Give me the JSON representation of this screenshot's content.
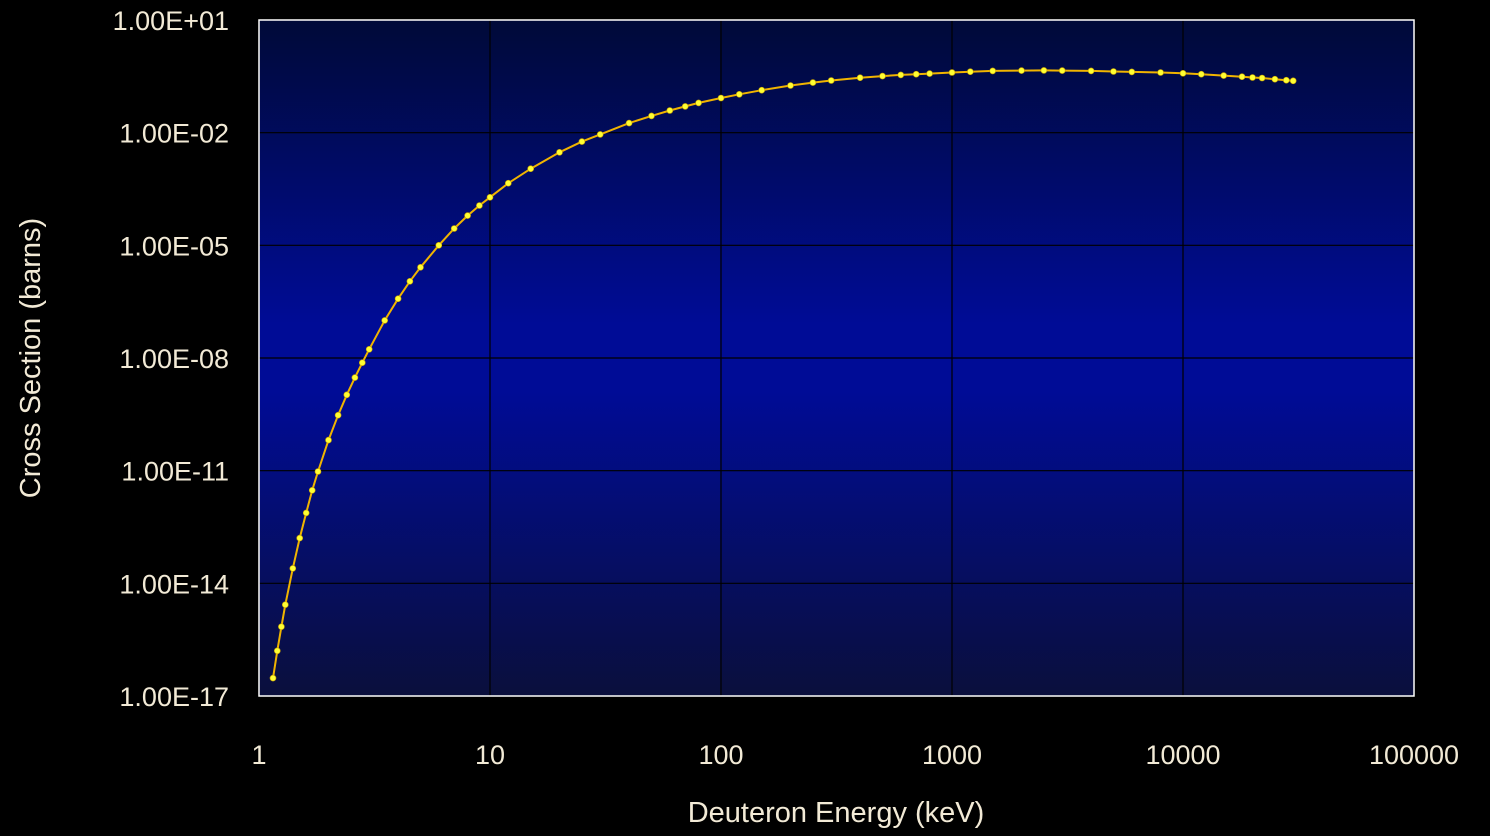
{
  "chart_data": {
    "type": "line",
    "title": "",
    "xlabel": "Deuteron Energy (keV)",
    "ylabel": "Cross Section (barns)",
    "x_scale": "log",
    "y_scale": "log",
    "xlim": [
      1,
      100000
    ],
    "ylim": [
      1e-17,
      10
    ],
    "grid": true,
    "legend": "none",
    "x_ticks": [
      {
        "value": 1,
        "label": "1"
      },
      {
        "value": 10,
        "label": "10"
      },
      {
        "value": 100,
        "label": "100"
      },
      {
        "value": 1000,
        "label": "1000"
      },
      {
        "value": 10000,
        "label": "10000"
      },
      {
        "value": 100000,
        "label": "100000"
      }
    ],
    "y_ticks": [
      {
        "value": 1e-17,
        "label": "1.00E-17"
      },
      {
        "value": 1e-14,
        "label": "1.00E-14"
      },
      {
        "value": 1e-11,
        "label": "1.00E-11"
      },
      {
        "value": 1e-08,
        "label": "1.00E-08"
      },
      {
        "value": 1e-05,
        "label": "1.00E-05"
      },
      {
        "value": 0.01,
        "label": "1.00E-02"
      },
      {
        "value": 10,
        "label": "1.00E+01"
      }
    ],
    "colors": {
      "background": "#000000",
      "plot_top": "#000a38",
      "plot_bottom": "#0a0f3c",
      "plot_mid": "#000c96",
      "grid": "#000000",
      "frame": "#ffffff",
      "line": "#f0b400",
      "marker": "#ffff33",
      "text": "#f2ead6"
    },
    "series": [
      {
        "x": [
          1.15,
          1.2,
          1.25,
          1.3,
          1.4,
          1.5,
          1.6,
          1.7,
          1.8,
          2.0,
          2.2,
          2.4,
          2.6,
          2.8,
          3.0,
          3.5,
          4.0,
          4.5,
          5.0,
          6.0,
          7.0,
          8.0,
          9.0,
          10,
          12,
          15,
          20,
          25,
          30,
          40,
          50,
          60,
          70,
          80,
          100,
          120,
          150,
          200,
          250,
          300,
          400,
          500,
          600,
          700,
          800,
          1000,
          1200,
          1500,
          2000,
          2500,
          3000,
          4000,
          5000,
          6000,
          8000,
          10000,
          12000,
          15000,
          18000,
          20000,
          22000,
          25000,
          28000,
          30000
        ],
        "y": [
          3e-17,
          1.6e-16,
          7e-16,
          2.7e-15,
          2.5e-14,
          1.6e-13,
          7.5e-13,
          3e-12,
          9.5e-12,
          6.5e-11,
          3e-10,
          1.05e-09,
          3e-09,
          7.5e-09,
          1.7e-08,
          1e-07,
          3.8e-07,
          1.1e-06,
          2.6e-06,
          1e-05,
          2.8e-05,
          6.2e-05,
          0.000115,
          0.00019,
          0.00045,
          0.0011,
          0.003,
          0.0058,
          0.009,
          0.018,
          0.028,
          0.039,
          0.05,
          0.062,
          0.084,
          0.105,
          0.135,
          0.18,
          0.215,
          0.245,
          0.29,
          0.32,
          0.345,
          0.36,
          0.375,
          0.4,
          0.42,
          0.44,
          0.45,
          0.455,
          0.45,
          0.44,
          0.425,
          0.415,
          0.4,
          0.38,
          0.36,
          0.33,
          0.31,
          0.295,
          0.285,
          0.265,
          0.25,
          0.24
        ]
      }
    ]
  }
}
